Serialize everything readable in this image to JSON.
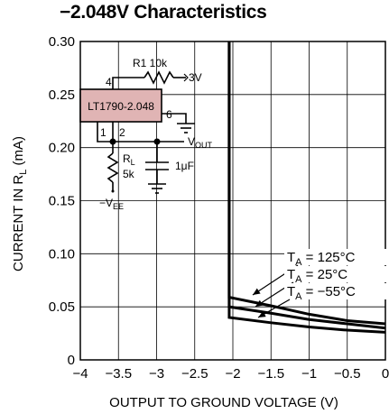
{
  "chart_data": {
    "type": "line",
    "title": "−2.048V Characteristics",
    "xlabel": "OUTPUT TO GROUND VOLTAGE (V)",
    "ylabel": "CURRENT IN R",
    "ylabel_sub": "L",
    "ylabel_unit": " (mA)",
    "xlim": [
      -4,
      0
    ],
    "ylim": [
      0,
      0.3
    ],
    "x_ticks": [
      -4,
      -3.5,
      -3,
      -2.5,
      -2,
      -1.5,
      -1,
      -0.5,
      0
    ],
    "x_tick_labels": [
      "−4",
      "−3.5",
      "−3",
      "−2.5",
      "−2",
      "−1.5",
      "−1",
      "−0.5",
      "0"
    ],
    "y_ticks": [
      0,
      0.05,
      0.1,
      0.15,
      0.2,
      0.25,
      0.3
    ],
    "y_tick_labels": [
      "0",
      "0.05",
      "0.10",
      "0.15",
      "0.20",
      "0.25",
      "0.30"
    ],
    "grid": true,
    "series": [
      {
        "name": "T_A = 125°C",
        "label_main": "T",
        "label_sub": "A",
        "label_rest": " = 125°C",
        "x": [
          -2.048,
          -2.048,
          -1.5,
          -1.0,
          -0.5,
          0
        ],
        "y": [
          0.3,
          0.059,
          0.051,
          0.043,
          0.037,
          0.034
        ]
      },
      {
        "name": "T_A = 25°C",
        "label_main": "T",
        "label_sub": "A",
        "label_rest": " = 25°C",
        "x": [
          -2.048,
          -2.048,
          -1.5,
          -1.0,
          -0.5,
          0
        ],
        "y": [
          0.3,
          0.05,
          0.044,
          0.038,
          0.034,
          0.03
        ]
      },
      {
        "name": "T_A = −55°C",
        "label_main": "T",
        "label_sub": "A",
        "label_rest": " = −55°C",
        "x": [
          -2.048,
          -2.048,
          -1.5,
          -1.0,
          -0.5,
          0
        ],
        "y": [
          0.3,
          0.04,
          0.035,
          0.031,
          0.028,
          0.026
        ]
      }
    ]
  },
  "schematic": {
    "r1_label": "R1 10k",
    "supply_label": "3V",
    "pin4": "4",
    "ic_label": "LT1790-2.048",
    "pin6": "6",
    "pin1": "1",
    "pin2": "2",
    "vout_main": "V",
    "vout_sub": "OUT",
    "rl_main": "R",
    "rl_sub": "L",
    "rl_value": "5k",
    "cap_label": "1μF",
    "vee_main": "−V",
    "vee_sub": "EE"
  },
  "colors": {
    "ic_fill": "#e0b4b4",
    "line": "#000000",
    "grid": "#000000"
  }
}
